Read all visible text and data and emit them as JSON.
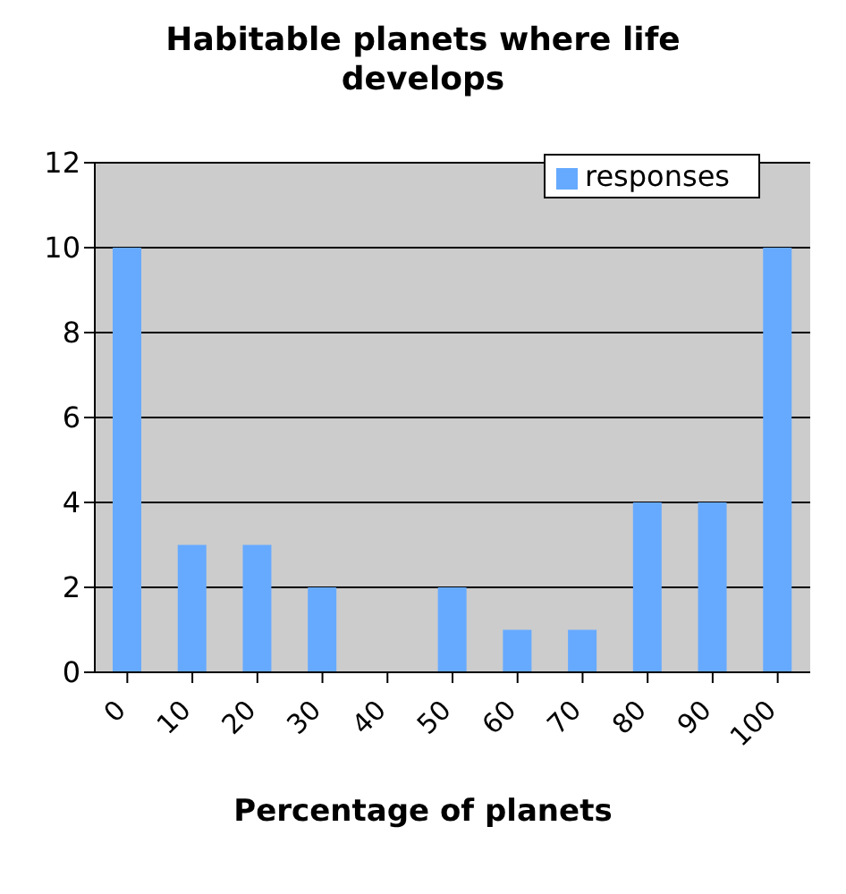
{
  "chart_data": {
    "type": "bar",
    "title": "Habitable planets where life develops",
    "xlabel": "Percentage of planets",
    "categories": [
      "0",
      "10",
      "20",
      "30",
      "40",
      "50",
      "60",
      "70",
      "80",
      "90",
      "100"
    ],
    "series": [
      {
        "name": "responses",
        "color": "#66aaff",
        "values": [
          10,
          3,
          3,
          2,
          0,
          2,
          1,
          1,
          4,
          4,
          10
        ]
      }
    ],
    "ylim": [
      0,
      12
    ],
    "yticks": [
      0,
      2,
      4,
      6,
      8,
      10,
      12
    ],
    "grid": "y",
    "legend": "top right"
  }
}
